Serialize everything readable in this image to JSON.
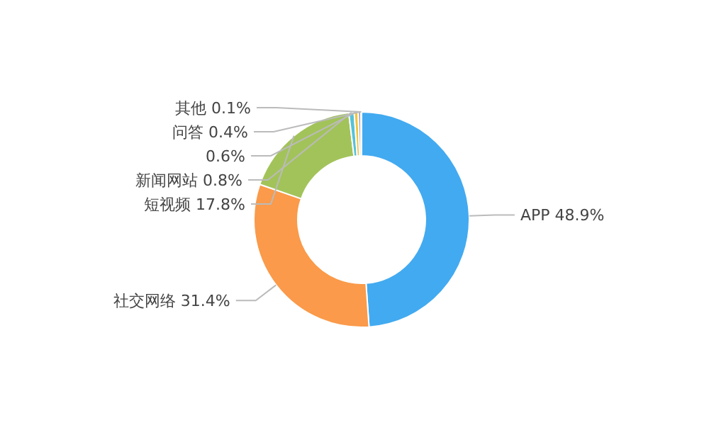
{
  "chart_data": {
    "type": "donut",
    "categories": [
      "APP",
      "社交网络",
      "短视频",
      "新闻网站",
      null,
      "问答",
      "其他"
    ],
    "values": [
      48.9,
      31.4,
      17.8,
      0.8,
      0.6,
      0.4,
      0.1
    ],
    "value_labels": [
      "48.9%",
      "31.4%",
      "17.8%",
      "0.8%",
      "0.6%",
      "0.4%",
      "0.1%"
    ],
    "colors": [
      "#42aaf0",
      "#fa9a4a",
      "#a2c35a",
      "#56c2d8",
      "#f2c43c",
      "#9a9fbf",
      "#c87cb2"
    ]
  }
}
